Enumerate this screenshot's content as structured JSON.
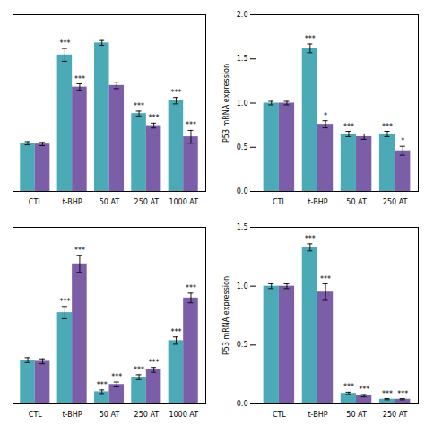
{
  "chart_data": [
    {
      "type": "bar",
      "categories": [
        "CTL",
        "t-BHP",
        "50 AT",
        "250 AT",
        "1000 AT"
      ],
      "series": [
        {
          "color": "#4BAAB5",
          "values": [
            0.6,
            1.7,
            1.85,
            0.97,
            1.13
          ],
          "errors": [
            0.02,
            0.08,
            0.03,
            0.03,
            0.04
          ],
          "annotations": [
            null,
            "***",
            null,
            "***",
            "***"
          ]
        },
        {
          "color": "#7B5EA7",
          "values": [
            0.59,
            1.3,
            1.32,
            0.82,
            0.68
          ],
          "errors": [
            0.02,
            0.04,
            0.04,
            0.03,
            0.08
          ],
          "annotations": [
            null,
            "***",
            null,
            "***",
            "***"
          ]
        }
      ],
      "ylim": [
        0,
        2.2
      ],
      "tick_labels": "x"
    },
    {
      "type": "bar",
      "ylabel": "P53 mRNA expression",
      "categories": [
        "CTL",
        "t-BHP",
        "50 AT",
        "250 AT"
      ],
      "series": [
        {
          "color": "#4BAAB5",
          "values": [
            1.0,
            1.62,
            0.65,
            0.65
          ],
          "errors": [
            0.02,
            0.05,
            0.03,
            0.03
          ],
          "annotations": [
            null,
            "***",
            "***",
            "***"
          ]
        },
        {
          "color": "#7B5EA7",
          "values": [
            1.0,
            0.76,
            0.62,
            0.46
          ],
          "errors": [
            0.02,
            0.04,
            0.03,
            0.05
          ],
          "annotations": [
            null,
            "*",
            null,
            "*"
          ]
        }
      ],
      "ylim": [
        0,
        2.0
      ],
      "yticks": [
        {
          "value": 0,
          "label": "0.0"
        },
        0.5,
        {
          "value": 1,
          "label": "1.0"
        },
        1.5,
        {
          "value": 2,
          "label": "2.0"
        }
      ]
    },
    {
      "type": "bar",
      "categories": [
        "CTL",
        "t-BHP",
        "50 AT",
        "250 AT",
        "1000 AT"
      ],
      "series": [
        {
          "color": "#4BAAB5",
          "values": [
            0.36,
            0.75,
            0.1,
            0.22,
            0.52
          ],
          "errors": [
            0.02,
            0.05,
            0.015,
            0.02,
            0.03
          ],
          "annotations": [
            null,
            "***",
            "***",
            "***",
            "***"
          ]
        },
        {
          "color": "#7B5EA7",
          "values": [
            0.35,
            1.15,
            0.16,
            0.28,
            0.87
          ],
          "errors": [
            0.02,
            0.07,
            0.02,
            0.02,
            0.04
          ],
          "annotations": [
            null,
            "***",
            "***",
            "***",
            "***"
          ]
        }
      ],
      "ylim": [
        0,
        1.45
      ],
      "tick_labels": "x"
    },
    {
      "type": "bar",
      "ylabel": "P53 mRNA expression",
      "categories": [
        "CTL",
        "t-BHP",
        "50 AT",
        "250 AT"
      ],
      "series": [
        {
          "color": "#4BAAB5",
          "values": [
            1.0,
            1.33,
            0.09,
            0.04
          ],
          "errors": [
            0.02,
            0.03,
            0.01,
            0.005
          ],
          "annotations": [
            null,
            "***",
            "***",
            "***"
          ]
        },
        {
          "color": "#7B5EA7",
          "values": [
            1.0,
            0.95,
            0.07,
            0.04
          ],
          "errors": [
            0.02,
            0.07,
            0.01,
            0.005
          ],
          "annotations": [
            null,
            "***",
            "***",
            "***"
          ]
        }
      ],
      "ylim": [
        0,
        1.5
      ],
      "yticks": [
        {
          "value": 0,
          "label": "0.0"
        },
        0.5,
        {
          "value": 1,
          "label": "1.0"
        },
        1.5
      ]
    }
  ]
}
